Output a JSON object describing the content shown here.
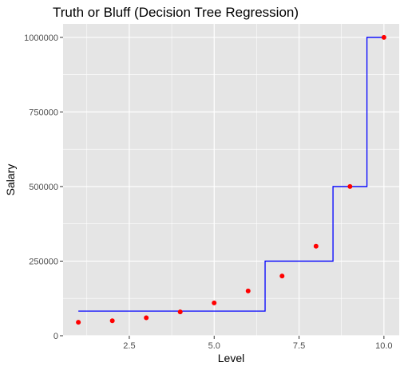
{
  "chart_data": {
    "type": "scatter",
    "title": "Truth or Bluff (Decision Tree Regression)",
    "xlabel": "Level",
    "ylabel": "Salary",
    "xlim": [
      0.55,
      10.45
    ],
    "ylim": [
      0,
      1045000
    ],
    "x_ticks": [
      2.5,
      5.0,
      7.5,
      10.0
    ],
    "x_tick_labels": [
      "2.5",
      "5.0",
      "7.5",
      "10.0"
    ],
    "x_minor_ticks": [
      1.25,
      3.75,
      6.25,
      8.75
    ],
    "y_ticks": [
      0,
      250000,
      500000,
      750000,
      1000000
    ],
    "y_tick_labels": [
      "0",
      "250000",
      "500000",
      "750000",
      "1000000"
    ],
    "y_minor_ticks": [
      125000,
      375000,
      625000,
      875000
    ],
    "grid": true,
    "legend": "none",
    "panel_color": "#e5e5e5",
    "grid_color": "#ffffff",
    "points": {
      "color": "#ff0000",
      "x": [
        1,
        2,
        3,
        4,
        5,
        6,
        7,
        8,
        9,
        10
      ],
      "y": [
        45000,
        50000,
        60000,
        80000,
        110000,
        150000,
        200000,
        300000,
        500000,
        1000000
      ]
    },
    "step_line": {
      "color": "#0000ff",
      "x": [
        1.0,
        6.5,
        6.5,
        8.5,
        8.5,
        9.5,
        9.5,
        10.0
      ],
      "y": [
        82500,
        82500,
        250000,
        250000,
        500000,
        500000,
        1000000,
        1000000
      ]
    }
  }
}
